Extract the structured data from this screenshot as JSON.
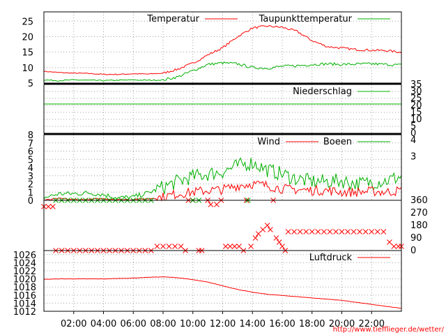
{
  "credit": "http://www.tiefflieger.de/wetter/",
  "colors": {
    "red": "#ff0000",
    "green": "#00b000",
    "grid": "#a0a0a0"
  },
  "chart_data": [
    {
      "type": "line",
      "panel": "temperature",
      "ylim": [
        5,
        28
      ],
      "yticks": [
        "5",
        "10",
        "15",
        "20",
        "25"
      ],
      "legend_position": "top-right",
      "series": [
        {
          "name": "Temperatur",
          "color": "#ff0000",
          "x_hours": [
            0,
            1,
            2,
            3,
            4,
            5,
            6,
            7,
            8,
            9,
            10,
            11,
            12,
            13,
            14,
            15,
            16,
            17,
            18,
            19,
            20,
            21,
            22,
            23,
            24
          ],
          "values": [
            8.8,
            8.4,
            8.2,
            8.1,
            7.8,
            7.8,
            8.0,
            7.9,
            8.2,
            9.5,
            11.4,
            14.1,
            16.4,
            20.0,
            22.8,
            23.4,
            23.0,
            21.7,
            18.7,
            16.8,
            16.3,
            15.8,
            15.6,
            15.5,
            14.9
          ]
        },
        {
          "name": "Taupunkttemperatur",
          "color": "#00b000",
          "x_hours": [
            0,
            1,
            2,
            3,
            4,
            5,
            6,
            7,
            8,
            9,
            10,
            11,
            12,
            13,
            14,
            15,
            16,
            17,
            18,
            19,
            20,
            21,
            22,
            23,
            24
          ],
          "values": [
            6.0,
            5.8,
            6.0,
            5.9,
            5.8,
            5.9,
            6.0,
            5.9,
            6.0,
            7.0,
            9.0,
            11.0,
            11.5,
            11.2,
            10.0,
            9.8,
            10.4,
            10.6,
            11.0,
            11.2,
            11.0,
            11.1,
            11.2,
            11.0,
            10.8
          ]
        }
      ]
    },
    {
      "type": "line",
      "panel": "precipitation",
      "ylim": [
        0,
        35
      ],
      "yticks_right": [
        "0",
        "5",
        "10",
        "15",
        "20",
        "25",
        "30",
        "35"
      ],
      "legend_position": "top-right",
      "series": [
        {
          "name": "Niederschlag",
          "color": "#00b000",
          "x_hours": [
            0,
            24
          ],
          "values": [
            0,
            0
          ]
        }
      ]
    },
    {
      "type": "line",
      "panel": "wind",
      "ylim": [
        0,
        8
      ],
      "yticks_left": [
        "0",
        "1",
        "2",
        "3",
        "4",
        "5",
        "6",
        "7",
        "8"
      ],
      "yticks_right": [
        "3",
        "4"
      ],
      "legend_position": "top-right",
      "series": [
        {
          "name": "Wind",
          "color": "#ff0000",
          "x_hours": [
            0,
            1,
            2,
            3,
            4,
            5,
            6,
            7,
            8,
            9,
            10,
            11,
            12,
            13,
            14,
            15,
            16,
            17,
            18,
            19,
            20,
            21,
            22,
            23,
            24
          ],
          "values": [
            0,
            0.2,
            0.1,
            0.1,
            0.2,
            0.1,
            0.1,
            0.2,
            0.4,
            0.8,
            1.0,
            1.2,
            1.3,
            1.8,
            2.0,
            1.8,
            1.4,
            1.3,
            1.2,
            1.2,
            1.0,
            1.0,
            1.1,
            1.0,
            1.2
          ]
        },
        {
          "name": "Boeen",
          "color": "#00b000",
          "x_hours": [
            0,
            1,
            2,
            3,
            4,
            5,
            6,
            7,
            8,
            9,
            10,
            11,
            12,
            13,
            14,
            15,
            16,
            17,
            18,
            19,
            20,
            21,
            22,
            23,
            24
          ],
          "values": [
            0.3,
            0.8,
            0.8,
            0.9,
            0.7,
            0.3,
            0.4,
            0.9,
            1.6,
            2.3,
            2.9,
            3.2,
            3.5,
            4.2,
            4.6,
            3.7,
            3.2,
            2.6,
            2.3,
            2.3,
            2.4,
            2.0,
            2.2,
            2.4,
            2.9
          ]
        }
      ]
    },
    {
      "type": "scatter",
      "panel": "wind_direction",
      "ylim": [
        0,
        360
      ],
      "yticks_right": [
        "0",
        "90",
        "180",
        "270",
        "360"
      ],
      "series": [
        {
          "name": "direction",
          "color": "#ff0000",
          "points": [
            [
              0.0,
              315
            ],
            [
              0.3,
              315
            ],
            [
              0.6,
              315
            ],
            [
              0.8,
              0
            ],
            [
              1.2,
              0
            ],
            [
              1.6,
              0
            ],
            [
              2.0,
              0
            ],
            [
              2.4,
              0
            ],
            [
              2.8,
              0
            ],
            [
              3.2,
              0
            ],
            [
              3.6,
              0
            ],
            [
              4.0,
              0
            ],
            [
              4.4,
              0
            ],
            [
              4.8,
              0
            ],
            [
              5.2,
              0
            ],
            [
              5.6,
              0
            ],
            [
              6.0,
              0
            ],
            [
              6.4,
              0
            ],
            [
              6.8,
              0
            ],
            [
              7.2,
              0
            ],
            [
              7.6,
              30
            ],
            [
              8.0,
              30
            ],
            [
              8.4,
              30
            ],
            [
              8.8,
              30
            ],
            [
              9.2,
              30
            ],
            [
              9.5,
              0
            ],
            [
              9.7,
              360
            ],
            [
              10.0,
              360
            ],
            [
              10.4,
              0
            ],
            [
              10.6,
              0
            ],
            [
              11.0,
              360
            ],
            [
              11.2,
              330
            ],
            [
              11.6,
              330
            ],
            [
              11.9,
              360
            ],
            [
              12.2,
              30
            ],
            [
              12.5,
              30
            ],
            [
              12.8,
              30
            ],
            [
              13.1,
              30
            ],
            [
              13.4,
              0
            ],
            [
              13.6,
              360
            ],
            [
              13.9,
              30
            ],
            [
              14.2,
              90
            ],
            [
              14.4,
              120
            ],
            [
              14.7,
              150
            ],
            [
              15.0,
              180
            ],
            [
              15.2,
              150
            ],
            [
              15.4,
              360
            ],
            [
              15.6,
              90
            ],
            [
              15.8,
              60
            ],
            [
              16.0,
              30
            ],
            [
              16.2,
              0
            ],
            [
              16.4,
              135
            ],
            [
              16.8,
              135
            ],
            [
              17.2,
              135
            ],
            [
              17.6,
              135
            ],
            [
              18.0,
              135
            ],
            [
              18.4,
              135
            ],
            [
              18.8,
              135
            ],
            [
              19.2,
              135
            ],
            [
              19.6,
              135
            ],
            [
              20.0,
              135
            ],
            [
              20.4,
              135
            ],
            [
              20.8,
              135
            ],
            [
              21.2,
              135
            ],
            [
              21.6,
              135
            ],
            [
              22.0,
              135
            ],
            [
              22.4,
              135
            ],
            [
              22.8,
              135
            ],
            [
              23.2,
              60
            ],
            [
              23.5,
              30
            ],
            [
              23.8,
              30
            ],
            [
              24.0,
              30
            ]
          ]
        },
        {
          "name": "direction_gust",
          "color": "#00b000",
          "points": [
            [
              0.8,
              360
            ],
            [
              1.2,
              360
            ],
            [
              1.6,
              360
            ],
            [
              2.0,
              360
            ],
            [
              2.4,
              360
            ],
            [
              2.8,
              360
            ],
            [
              3.2,
              360
            ],
            [
              3.6,
              360
            ],
            [
              4.0,
              360
            ],
            [
              4.4,
              360
            ],
            [
              4.8,
              360
            ],
            [
              5.2,
              360
            ],
            [
              5.6,
              360
            ],
            [
              6.0,
              360
            ],
            [
              6.4,
              360
            ],
            [
              6.8,
              360
            ],
            [
              7.2,
              360
            ],
            [
              10.0,
              360
            ],
            [
              10.4,
              360
            ],
            [
              13.7,
              360
            ]
          ]
        }
      ]
    },
    {
      "type": "line",
      "panel": "pressure",
      "ylim": [
        1012,
        1027
      ],
      "yticks": [
        "1012",
        "1014",
        "1016",
        "1018",
        "1020",
        "1022",
        "1024",
        "1026"
      ],
      "legend_position": "top-right",
      "series": [
        {
          "name": "Luftdruck",
          "color": "#ff0000",
          "x_hours": [
            0,
            1,
            2,
            3,
            4,
            5,
            6,
            7,
            8,
            9,
            10,
            11,
            12,
            13,
            14,
            15,
            16,
            17,
            18,
            19,
            20,
            21,
            22,
            23,
            24
          ],
          "values": [
            1019.9,
            1020.0,
            1020.0,
            1020.0,
            1020.0,
            1020.1,
            1020.2,
            1020.4,
            1020.5,
            1020.3,
            1019.8,
            1019.2,
            1018.3,
            1017.4,
            1016.7,
            1016.2,
            1015.9,
            1015.6,
            1015.3,
            1015.0,
            1014.7,
            1014.2,
            1013.7,
            1013.2,
            1012.7
          ]
        }
      ]
    }
  ],
  "x_axis": {
    "range_hours": [
      0,
      24
    ],
    "ticks": [
      "02:00",
      "04:00",
      "06:00",
      "08:00",
      "10:00",
      "12:00",
      "14:00",
      "16:00",
      "18:00",
      "20:00",
      "22:00"
    ]
  }
}
